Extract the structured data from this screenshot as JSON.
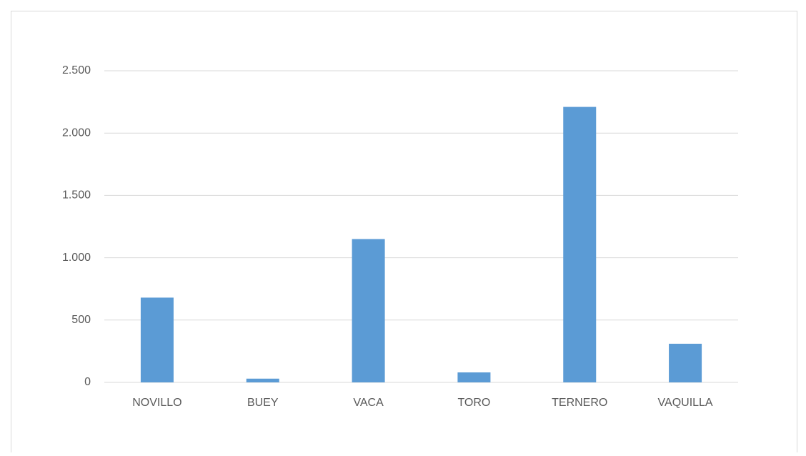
{
  "chart_data": {
    "type": "bar",
    "categories": [
      "NOVILLO",
      "BUEY",
      "VACA",
      "TORO",
      "TERNERO",
      "VAQUILLA"
    ],
    "values": [
      680,
      30,
      1150,
      80,
      2210,
      310
    ],
    "color": "#5b9bd5",
    "ylim": [
      0,
      2500
    ],
    "yticks": [
      0,
      500,
      {
        "value": 1000,
        "label": "1.000"
      },
      {
        "value": 1500,
        "label": "1.500"
      },
      {
        "value": 2000,
        "label": "2.000"
      },
      {
        "value": 2500,
        "label": "2.500"
      }
    ],
    "grid": true
  }
}
